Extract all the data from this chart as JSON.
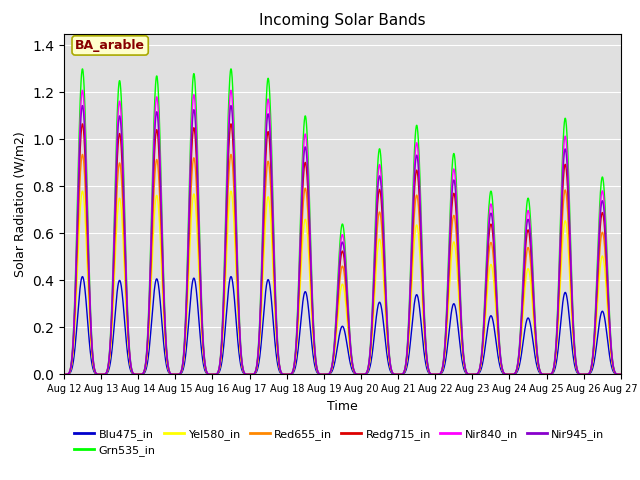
{
  "title": "Incoming Solar Bands",
  "xlabel": "Time",
  "ylabel": "Solar Radiation (W/m2)",
  "annotation": "BA_arable",
  "annotation_bg": "#ffffcc",
  "annotation_border": "#aaaa00",
  "annotation_text_color": "#880000",
  "background_color": "#e0e0e0",
  "ylim": [
    0,
    1.45
  ],
  "yticks": [
    0.0,
    0.2,
    0.4,
    0.6,
    0.8,
    1.0,
    1.2,
    1.4
  ],
  "x_tick_labels": [
    "Aug 12",
    "Aug 13",
    "Aug 14",
    "Aug 15",
    "Aug 16",
    "Aug 17",
    "Aug 18",
    "Aug 19",
    "Aug 20",
    "Aug 21",
    "Aug 22",
    "Aug 23",
    "Aug 24",
    "Aug 25",
    "Aug 26",
    "Aug 27"
  ],
  "series": [
    {
      "name": "Blu475_in",
      "color": "#0000cc",
      "lw": 1.0,
      "scale": 0.32
    },
    {
      "name": "Grn535_in",
      "color": "#00ff00",
      "lw": 1.0,
      "scale": 1.0
    },
    {
      "name": "Yel580_in",
      "color": "#ffff00",
      "lw": 1.0,
      "scale": 0.6
    },
    {
      "name": "Red655_in",
      "color": "#ff8800",
      "lw": 1.0,
      "scale": 0.72
    },
    {
      "name": "Redg715_in",
      "color": "#dd0000",
      "lw": 1.0,
      "scale": 0.82
    },
    {
      "name": "Nir840_in",
      "color": "#ff00ff",
      "lw": 1.0,
      "scale": 0.93
    },
    {
      "name": "Nir945_in",
      "color": "#8800cc",
      "lw": 1.0,
      "scale": 0.88
    }
  ],
  "n_days": 15,
  "points_per_day": 144,
  "day_peaks_grn": [
    1.3,
    1.25,
    1.27,
    1.28,
    1.3,
    1.26,
    1.1,
    0.64,
    0.96,
    1.06,
    0.94,
    0.78,
    0.75,
    1.09,
    0.84
  ],
  "sharpness": 6
}
